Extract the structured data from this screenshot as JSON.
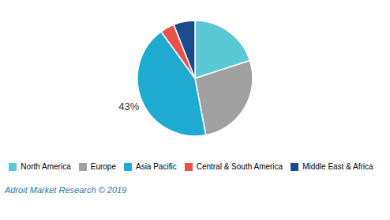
{
  "chart_data": {
    "type": "pie",
    "categories": [
      "North America",
      "Europe",
      "Asia Pacific",
      "Central & South America",
      "Middle East & Africa"
    ],
    "values": [
      20,
      27,
      43,
      4,
      6
    ],
    "value_labels": [
      null,
      null,
      "43%",
      null,
      null
    ],
    "colors": [
      "#5bc8d5",
      "#a0a0a0",
      "#1eaad1",
      "#e8524a",
      "#1a4b8c"
    ],
    "legend": "bottom",
    "caption": "Adroit Market Research © 2019"
  }
}
